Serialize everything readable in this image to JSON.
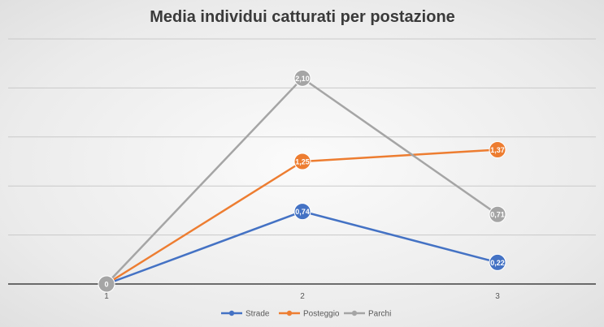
{
  "chart_data": {
    "type": "line",
    "title": "Media individui catturati per postazione",
    "xlabel": "",
    "ylabel": "",
    "x": [
      "1",
      "2",
      "3"
    ],
    "ylim": [
      0,
      2.5
    ],
    "grid": true,
    "legend": "bottom",
    "series": [
      {
        "name": "Strade",
        "color": "#4472c4",
        "values": [
          0,
          0.74,
          0.22
        ],
        "labels": [
          "",
          "0,74",
          "0,22"
        ]
      },
      {
        "name": "Posteggio",
        "color": "#ed7d31",
        "values": [
          0,
          1.25,
          1.37
        ],
        "labels": [
          "",
          "1,25",
          "1,37"
        ]
      },
      {
        "name": "Parchi",
        "color": "#a5a5a5",
        "values": [
          0,
          2.1,
          0.71
        ],
        "labels": [
          "0",
          "2,10",
          "0,71"
        ]
      }
    ]
  }
}
